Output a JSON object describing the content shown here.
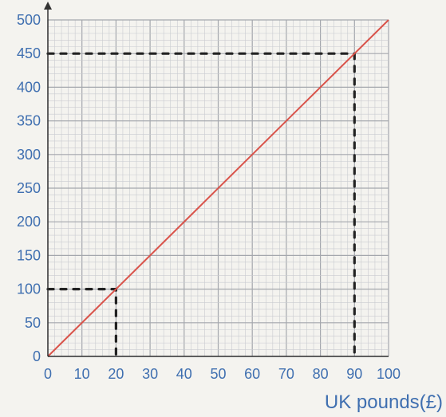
{
  "chart_data": {
    "type": "line",
    "title": "",
    "xlabel": "UK pounds(£)",
    "ylabel": "",
    "xlim": [
      0,
      100
    ],
    "ylim": [
      0,
      500
    ],
    "x_ticks": [
      0,
      10,
      20,
      30,
      40,
      50,
      60,
      70,
      80,
      90,
      100
    ],
    "y_ticks": [
      0,
      50,
      100,
      150,
      200,
      250,
      300,
      350,
      400,
      450,
      500
    ],
    "grid": true,
    "series": [
      {
        "x": [
          0,
          100
        ],
        "y": [
          0,
          500
        ]
      }
    ],
    "readings": [
      {
        "x": 20,
        "y": 100
      },
      {
        "x": 90,
        "y": 450
      }
    ],
    "colors": {
      "line": "#d9534a",
      "labels": "#3f6fb0",
      "grid_minor": "#c9cbd0",
      "grid_major": "#a4a7ad",
      "axis": "#333333",
      "guides": "#222222"
    }
  }
}
